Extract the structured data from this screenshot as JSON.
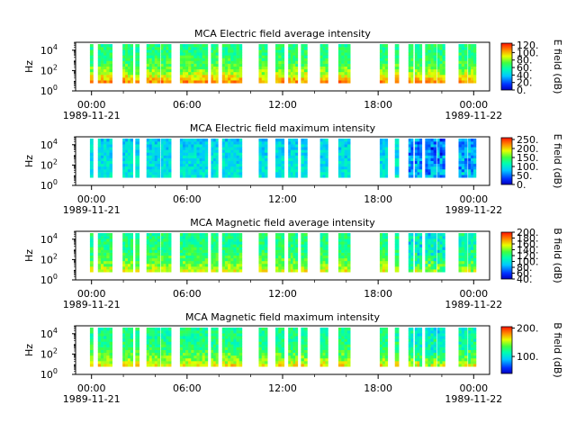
{
  "chart_data": [
    {
      "type": "heatmap",
      "title": "MCA  Electric field average intensity",
      "ylabel": "Hz",
      "y_scale": "log",
      "ylim": [
        1,
        60000
      ],
      "y_ticks": [
        {
          "value": 1,
          "base": "10",
          "exp": "0"
        },
        {
          "value": 100,
          "base": "10",
          "exp": "2"
        },
        {
          "value": 10000,
          "base": "10",
          "exp": "4"
        }
      ],
      "x_range_hours": [
        -1,
        25
      ],
      "x_ticks": [
        {
          "hour": 0,
          "label": "00:00"
        },
        {
          "hour": 6,
          "label": "06:00"
        },
        {
          "hour": 12,
          "label": "12:00"
        },
        {
          "hour": 18,
          "label": "18:00"
        },
        {
          "hour": 24,
          "label": "00:00"
        }
      ],
      "date_labels": [
        {
          "hour": 0,
          "label": "1989-11-21"
        },
        {
          "hour": 24,
          "label": "1989-11-22"
        }
      ],
      "colorbar": {
        "label": "E field (dB)",
        "range": [
          0,
          125
        ],
        "ticks": [
          {
            "value": 0,
            "label": "0."
          },
          {
            "value": 20,
            "label": "20."
          },
          {
            "value": 40,
            "label": "40."
          },
          {
            "value": 60,
            "label": "60."
          },
          {
            "value": 80,
            "label": "80."
          },
          {
            "value": 100,
            "label": "100."
          },
          {
            "value": 120,
            "label": "120."
          }
        ]
      },
      "data_intervals_hours": [
        [
          -0.1,
          0.1
        ],
        [
          0.4,
          1.3
        ],
        [
          1.95,
          2.6
        ],
        [
          2.75,
          3.0
        ],
        [
          3.45,
          4.3
        ],
        [
          4.35,
          5.0
        ],
        [
          5.55,
          7.3
        ],
        [
          7.5,
          7.95
        ],
        [
          8.2,
          9.45
        ],
        [
          10.5,
          11.05
        ],
        [
          11.55,
          12.1
        ],
        [
          12.35,
          12.95
        ],
        [
          13.15,
          13.55
        ],
        [
          14.35,
          14.85
        ],
        [
          15.5,
          16.25
        ],
        [
          18.1,
          18.6
        ],
        [
          19.05,
          19.3
        ],
        [
          19.9,
          20.2
        ],
        [
          20.3,
          20.75
        ],
        [
          20.95,
          21.65
        ],
        [
          21.7,
          22.2
        ],
        [
          23.05,
          23.6
        ],
        [
          23.65,
          24.15
        ]
      ]
    },
    {
      "type": "heatmap",
      "title": "MCA  Electric field maximum intensity",
      "ylabel": "Hz",
      "y_scale": "log",
      "ylim": [
        1,
        60000
      ],
      "y_ticks": [
        {
          "value": 1,
          "base": "10",
          "exp": "0"
        },
        {
          "value": 100,
          "base": "10",
          "exp": "2"
        },
        {
          "value": 10000,
          "base": "10",
          "exp": "4"
        }
      ],
      "x_range_hours": [
        -1,
        25
      ],
      "x_ticks": [
        {
          "hour": 0,
          "label": "00:00"
        },
        {
          "hour": 6,
          "label": "06:00"
        },
        {
          "hour": 12,
          "label": "12:00"
        },
        {
          "hour": 18,
          "label": "18:00"
        },
        {
          "hour": 24,
          "label": "00:00"
        }
      ],
      "date_labels": [
        {
          "hour": 0,
          "label": "1989-11-21"
        },
        {
          "hour": 24,
          "label": "1989-11-22"
        }
      ],
      "colorbar": {
        "label": "E field (dB)",
        "range": [
          0,
          260
        ],
        "ticks": [
          {
            "value": 0,
            "label": "0."
          },
          {
            "value": 50,
            "label": "50."
          },
          {
            "value": 100,
            "label": "100."
          },
          {
            "value": 150,
            "label": "150."
          },
          {
            "value": 200,
            "label": "200."
          },
          {
            "value": 250,
            "label": "250."
          }
        ]
      },
      "data_intervals_hours": [
        [
          -0.1,
          0.1
        ],
        [
          0.4,
          1.3
        ],
        [
          1.95,
          2.6
        ],
        [
          2.75,
          3.0
        ],
        [
          3.45,
          4.3
        ],
        [
          4.35,
          5.0
        ],
        [
          5.55,
          7.3
        ],
        [
          7.5,
          7.95
        ],
        [
          8.2,
          9.45
        ],
        [
          10.5,
          11.05
        ],
        [
          11.55,
          12.1
        ],
        [
          12.35,
          12.95
        ],
        [
          13.15,
          13.55
        ],
        [
          14.35,
          14.85
        ],
        [
          15.5,
          16.25
        ],
        [
          18.1,
          18.6
        ],
        [
          19.05,
          19.3
        ],
        [
          19.9,
          20.2
        ],
        [
          20.3,
          20.75
        ],
        [
          20.95,
          21.65
        ],
        [
          21.7,
          22.2
        ],
        [
          23.05,
          23.6
        ],
        [
          23.65,
          24.15
        ]
      ]
    },
    {
      "type": "heatmap",
      "title": "MCA  Magnetic field average intensity",
      "ylabel": "Hz",
      "y_scale": "log",
      "ylim": [
        1,
        60000
      ],
      "y_ticks": [
        {
          "value": 1,
          "base": "10",
          "exp": "0"
        },
        {
          "value": 100,
          "base": "10",
          "exp": "2"
        },
        {
          "value": 10000,
          "base": "10",
          "exp": "4"
        }
      ],
      "x_range_hours": [
        -1,
        25
      ],
      "x_ticks": [
        {
          "hour": 0,
          "label": "00:00"
        },
        {
          "hour": 6,
          "label": "06:00"
        },
        {
          "hour": 12,
          "label": "12:00"
        },
        {
          "hour": 18,
          "label": "18:00"
        },
        {
          "hour": 24,
          "label": "00:00"
        }
      ],
      "date_labels": [
        {
          "hour": 0,
          "label": "1989-11-21"
        },
        {
          "hour": 24,
          "label": "1989-11-22"
        }
      ],
      "colorbar": {
        "label": "B field (dB)",
        "range": [
          40,
          200
        ],
        "ticks": [
          {
            "value": 40,
            "label": "40."
          },
          {
            "value": 60,
            "label": "60."
          },
          {
            "value": 80,
            "label": "80."
          },
          {
            "value": 100,
            "label": "100."
          },
          {
            "value": 120,
            "label": "120."
          },
          {
            "value": 140,
            "label": "140."
          },
          {
            "value": 160,
            "label": "160."
          },
          {
            "value": 180,
            "label": "180."
          },
          {
            "value": 200,
            "label": "200."
          }
        ]
      },
      "data_intervals_hours": [
        [
          -0.1,
          0.1
        ],
        [
          0.4,
          1.3
        ],
        [
          1.95,
          2.6
        ],
        [
          2.75,
          3.0
        ],
        [
          3.45,
          4.3
        ],
        [
          4.35,
          5.0
        ],
        [
          5.55,
          7.3
        ],
        [
          7.5,
          7.95
        ],
        [
          8.2,
          9.45
        ],
        [
          10.5,
          11.05
        ],
        [
          11.55,
          12.1
        ],
        [
          12.35,
          12.95
        ],
        [
          13.15,
          13.55
        ],
        [
          14.35,
          14.85
        ],
        [
          15.5,
          16.25
        ],
        [
          18.1,
          18.6
        ],
        [
          19.05,
          19.3
        ],
        [
          19.9,
          20.2
        ],
        [
          20.3,
          20.75
        ],
        [
          20.95,
          21.65
        ],
        [
          21.7,
          22.2
        ],
        [
          23.05,
          23.6
        ],
        [
          23.65,
          24.15
        ]
      ]
    },
    {
      "type": "heatmap",
      "title": "MCA  Magnetic field maximum intensity",
      "ylabel": "Hz",
      "y_scale": "log",
      "ylim": [
        1,
        60000
      ],
      "y_ticks": [
        {
          "value": 1,
          "base": "10",
          "exp": "0"
        },
        {
          "value": 100,
          "base": "10",
          "exp": "2"
        },
        {
          "value": 10000,
          "base": "10",
          "exp": "4"
        }
      ],
      "x_range_hours": [
        -1,
        25
      ],
      "x_ticks": [
        {
          "hour": 0,
          "label": "00:00"
        },
        {
          "hour": 6,
          "label": "06:00"
        },
        {
          "hour": 12,
          "label": "12:00"
        },
        {
          "hour": 18,
          "label": "18:00"
        },
        {
          "hour": 24,
          "label": "00:00"
        }
      ],
      "date_labels": [
        {
          "hour": 0,
          "label": "1989-11-21"
        },
        {
          "hour": 24,
          "label": "1989-11-22"
        }
      ],
      "colorbar": {
        "label": "B field (dB)",
        "range": [
          40,
          205
        ],
        "ticks": [
          {
            "value": 100,
            "label": "100."
          },
          {
            "value": 200,
            "label": "200."
          }
        ]
      },
      "data_intervals_hours": [
        [
          -0.1,
          0.1
        ],
        [
          0.4,
          1.3
        ],
        [
          1.95,
          2.6
        ],
        [
          2.75,
          3.0
        ],
        [
          3.45,
          4.3
        ],
        [
          4.35,
          5.0
        ],
        [
          5.55,
          7.3
        ],
        [
          7.5,
          7.95
        ],
        [
          8.2,
          9.45
        ],
        [
          10.5,
          11.05
        ],
        [
          11.55,
          12.1
        ],
        [
          12.35,
          12.95
        ],
        [
          13.15,
          13.55
        ],
        [
          14.35,
          14.85
        ],
        [
          15.5,
          16.25
        ],
        [
          18.1,
          18.6
        ],
        [
          19.05,
          19.3
        ],
        [
          19.9,
          20.2
        ],
        [
          20.3,
          20.75
        ],
        [
          20.95,
          21.65
        ],
        [
          21.7,
          22.2
        ],
        [
          23.05,
          23.6
        ],
        [
          23.65,
          24.15
        ]
      ]
    }
  ]
}
